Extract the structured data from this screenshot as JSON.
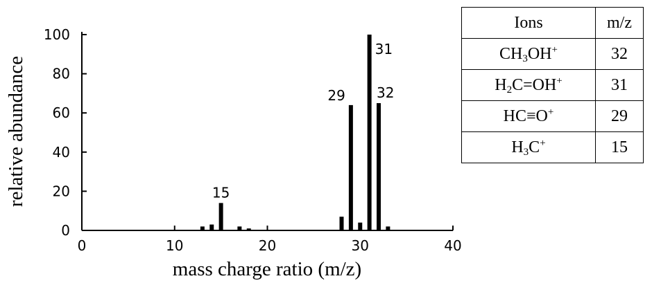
{
  "chart_data": {
    "type": "bar",
    "xlabel": "mass charge ratio (m/z)",
    "ylabel": "relative abundance",
    "xlim": [
      0,
      40
    ],
    "ylim": [
      0,
      100
    ],
    "x_ticks": [
      0,
      10,
      20,
      30,
      40
    ],
    "y_ticks": [
      0,
      20,
      40,
      60,
      80,
      100
    ],
    "x": [
      13,
      14,
      15,
      17,
      18,
      28,
      29,
      30,
      31,
      32,
      33
    ],
    "values": [
      2,
      3,
      14,
      2,
      1,
      7,
      64,
      4,
      100,
      65,
      2
    ],
    "peak_labels": [
      {
        "x": 15,
        "y": 14,
        "text": "15"
      },
      {
        "x": 29,
        "y": 64,
        "text": "29"
      },
      {
        "x": 31,
        "y": 100,
        "text": "31"
      },
      {
        "x": 32,
        "y": 65,
        "text": "32"
      }
    ],
    "bar_color": "#000000"
  },
  "ion_table": {
    "headers": [
      "Ions",
      "m/z"
    ],
    "rows": [
      {
        "ion": [
          "CH",
          "3",
          "OH",
          "+"
        ],
        "mz": "32"
      },
      {
        "ion": [
          "H",
          "2",
          "C=OH",
          "+"
        ],
        "mz": "31"
      },
      {
        "ion": [
          "HC≡O",
          "",
          "",
          "+"
        ],
        "mz": "29"
      },
      {
        "ion": [
          "H",
          "3",
          "C",
          "+"
        ],
        "mz": "15"
      }
    ]
  }
}
